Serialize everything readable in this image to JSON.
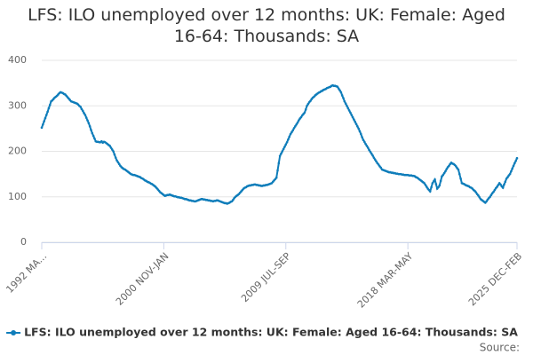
{
  "chart_data": {
    "type": "line",
    "title": "LFS: ILO unemployed over 12 months: UK: Female: Aged 16-64: Thousands: SA",
    "source": "Source:",
    "ylim": [
      0,
      400
    ],
    "yticks": [
      0,
      100,
      200,
      300,
      400
    ],
    "grid": true,
    "categories": [
      "1992 MA...",
      null,
      null,
      null,
      null,
      null,
      null,
      null,
      null,
      null,
      null,
      null,
      null,
      null,
      null,
      null,
      null,
      null,
      null,
      null,
      null,
      null,
      null,
      null,
      null,
      null,
      null,
      null,
      null,
      null,
      null,
      null,
      null,
      null,
      null,
      null,
      null,
      null,
      null,
      null,
      null,
      null,
      null,
      null,
      null,
      null,
      null,
      null,
      null,
      null,
      null,
      null,
      null,
      null,
      null,
      null,
      null,
      null,
      null,
      null,
      null,
      null,
      null,
      null,
      null,
      null,
      null,
      null,
      null,
      null,
      null,
      null,
      null,
      null,
      null,
      null,
      null,
      null,
      null,
      null,
      null,
      null,
      null,
      null,
      null,
      null,
      null,
      null,
      null,
      null,
      null,
      null,
      null,
      null,
      null,
      null,
      null,
      null,
      null,
      null,
      null,
      null,
      null,
      null,
      "2000 NOV-JAN",
      null,
      null,
      null,
      null,
      null,
      null,
      null,
      null,
      null,
      null,
      null,
      null,
      null,
      null,
      null,
      null,
      null,
      null,
      null,
      null,
      null,
      null,
      null,
      null,
      null,
      null,
      null,
      null,
      null,
      null,
      null,
      null,
      null,
      null,
      null,
      null,
      null,
      null,
      null,
      null,
      null,
      null,
      null,
      null,
      null,
      null,
      null,
      null,
      null,
      null,
      null,
      null,
      null,
      null,
      null,
      null,
      null,
      null,
      null,
      null,
      null,
      null,
      null,
      null,
      null,
      null,
      null,
      null,
      null,
      null,
      null,
      null,
      null,
      null,
      null,
      null,
      null,
      null,
      null,
      null,
      null,
      null,
      null,
      null,
      null,
      null,
      null,
      null,
      null,
      null,
      null,
      null,
      null,
      null,
      null,
      null,
      null,
      null,
      null,
      null,
      null,
      null,
      null,
      "2009 JUL-SEP",
      null,
      null,
      null,
      null,
      null,
      null,
      null,
      null,
      null,
      null,
      null,
      null,
      null,
      null,
      null,
      null,
      null,
      null,
      null,
      null,
      null,
      null,
      null,
      null,
      null,
      null,
      null,
      null,
      null,
      null,
      null,
      null,
      null,
      null,
      null,
      null,
      null,
      null,
      null,
      null,
      null,
      null,
      null,
      null,
      null,
      null,
      null,
      null,
      null,
      null,
      null,
      null,
      null,
      null,
      null,
      null,
      null,
      null,
      null,
      null,
      null,
      null,
      null,
      null,
      null,
      null,
      null,
      null,
      null,
      null,
      null,
      null,
      null,
      null,
      null,
      null,
      null,
      null,
      null,
      null,
      null,
      null,
      null,
      null,
      null,
      null,
      null,
      null,
      null,
      null,
      null,
      null,
      null,
      null,
      null,
      null,
      null,
      null,
      null,
      null,
      null,
      null,
      null,
      "2018 MAR-MAY",
      null,
      null,
      null,
      null,
      null,
      null,
      null,
      null,
      null,
      null,
      null,
      null,
      null,
      null,
      null,
      null,
      null,
      null,
      null,
      null,
      null,
      null,
      null,
      null,
      null,
      null,
      null,
      null,
      null,
      null,
      null,
      null,
      null,
      null,
      null,
      null,
      null,
      null,
      null,
      null,
      null,
      null,
      null,
      null,
      null,
      null,
      null,
      null,
      null,
      null,
      null,
      null,
      null,
      null,
      null,
      null,
      null,
      null,
      null,
      null,
      null,
      null,
      null,
      null,
      null,
      null,
      null,
      null,
      null,
      null,
      null,
      null,
      null,
      null,
      null,
      null,
      null,
      null,
      null,
      null,
      null,
      null,
      null,
      null,
      null,
      null,
      null,
      null,
      null,
      null,
      null,
      null,
      "2025 DEC-FEB"
    ],
    "series": [
      {
        "name": "LFS: ILO unemployed over 12 months: UK: Female: Aged 16-64: Thousands: SA",
        "color": "#0f7dba",
        "values": [
          252,
          259,
          266,
          273,
          280,
          287,
          295,
          302,
          310,
          312,
          315,
          318,
          320,
          322,
          325,
          328,
          330,
          329,
          328,
          326,
          325,
          322,
          319,
          316,
          313,
          310,
          309,
          308,
          307,
          306,
          305,
          303,
          300,
          298,
          293,
          289,
          284,
          280,
          274,
          268,
          262,
          255,
          247,
          240,
          234,
          228,
          222,
          221,
          221,
          220,
          220,
          222,
          219,
          221,
          220,
          218,
          216,
          214,
          212,
          208,
          204,
          200,
          193,
          186,
          180,
          176,
          172,
          168,
          165,
          163,
          161,
          160,
          158,
          156,
          154,
          152,
          150,
          149,
          148,
          148,
          147,
          146,
          145,
          144,
          143,
          141,
          140,
          138,
          136,
          135,
          133,
          132,
          131,
          129,
          128,
          126,
          124,
          122,
          119,
          116,
          113,
          110,
          108,
          106,
          104,
          102,
          103,
          104,
          104,
          105,
          104,
          103,
          102,
          101,
          101,
          100,
          99,
          99,
          98,
          98,
          97,
          96,
          95,
          95,
          94,
          93,
          92,
          92,
          91,
          91,
          90,
          90,
          91,
          92,
          93,
          94,
          95,
          95,
          94,
          94,
          93,
          93,
          92,
          92,
          91,
          91,
          90,
          91,
          91,
          92,
          92,
          91,
          90,
          89,
          88,
          87,
          86,
          86,
          85,
          86,
          87,
          89,
          90,
          93,
          97,
          100,
          102,
          104,
          106,
          109,
          112,
          115,
          118,
          120,
          121,
          123,
          124,
          125,
          125,
          126,
          126,
          127,
          127,
          126,
          126,
          125,
          125,
          124,
          124,
          125,
          125,
          126,
          126,
          127,
          128,
          129,
          130,
          133,
          136,
          139,
          142,
          158,
          174,
          190,
          195,
          200,
          205,
          210,
          215,
          220,
          226,
          232,
          238,
          242,
          246,
          251,
          255,
          259,
          263,
          268,
          272,
          275,
          279,
          282,
          285,
          292,
          300,
          304,
          308,
          311,
          315,
          318,
          320,
          323,
          325,
          327,
          329,
          330,
          332,
          333,
          335,
          336,
          337,
          339,
          340,
          341,
          342,
          344,
          345,
          344,
          344,
          343,
          342,
          338,
          334,
          330,
          323,
          317,
          310,
          305,
          300,
          295,
          290,
          285,
          280,
          275,
          270,
          265,
          260,
          255,
          250,
          244,
          238,
          231,
          225,
          221,
          216,
          212,
          208,
          203,
          199,
          195,
          191,
          186,
          182,
          178,
          174,
          171,
          167,
          164,
          160,
          159,
          158,
          157,
          156,
          155,
          154,
          154,
          153,
          153,
          152,
          152,
          151,
          151,
          150,
          150,
          150,
          149,
          149,
          148,
          148,
          148,
          148,
          147,
          147,
          147,
          146,
          146,
          145,
          143,
          142,
          140,
          138,
          136,
          134,
          132,
          130,
          126,
          122,
          118,
          115,
          112,
          121,
          130,
          134,
          138,
          128,
          118,
          121,
          125,
          135,
          145,
          148,
          152,
          156,
          161,
          165,
          168,
          172,
          175,
          173,
          172,
          170,
          167,
          163,
          160,
          150,
          140,
          130,
          129,
          128,
          126,
          125,
          124,
          123,
          121,
          120,
          118,
          115,
          113,
          110,
          106,
          103,
          99,
          95,
          93,
          91,
          89,
          87,
          90,
          94,
          97,
          100,
          104,
          108,
          111,
          115,
          119,
          122,
          126,
          130,
          127,
          123,
          120,
          127,
          133,
          140,
          143,
          147,
          150,
          156,
          162,
          168,
          174,
          179,
          185
        ]
      }
    ]
  }
}
